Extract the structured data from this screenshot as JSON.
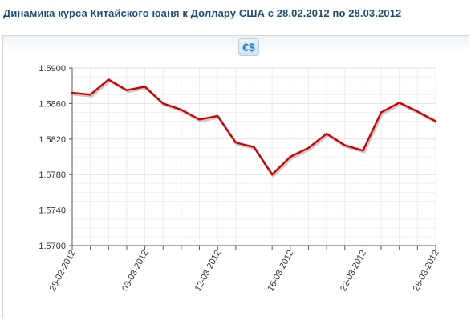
{
  "title": "Динамика  курса Китайского юаня  к Доллару США с 28.02.2012  по 28.03.2012",
  "logo": {
    "text": "€$"
  },
  "chart_data": {
    "type": "line",
    "title": "Динамика  курса Китайского юаня  к Доллару США с 28.02.2012  по 28.03.2012",
    "xlabel": "",
    "ylabel": "",
    "x_tick_labels": [
      "28-02-2012",
      "03-03-2012",
      "12-03-2012",
      "16-03-2012",
      "22-03-2012",
      "28-03-2012"
    ],
    "y_tick_labels": [
      "1.5700",
      "1.5740",
      "1.5780",
      "1.5820",
      "1.5860",
      "1.5900"
    ],
    "ylim": [
      1.57,
      1.59
    ],
    "grid": true,
    "line_color": "#d10000",
    "series": [
      {
        "values": [
          1.5872,
          1.587,
          1.5887,
          1.5875,
          1.5879,
          1.586,
          1.5853,
          1.5842,
          1.5846,
          1.5816,
          1.5811,
          1.578,
          1.58,
          1.581,
          1.5826,
          1.5813,
          1.5807,
          1.585,
          1.5861,
          1.5851,
          1.584
        ]
      }
    ]
  }
}
